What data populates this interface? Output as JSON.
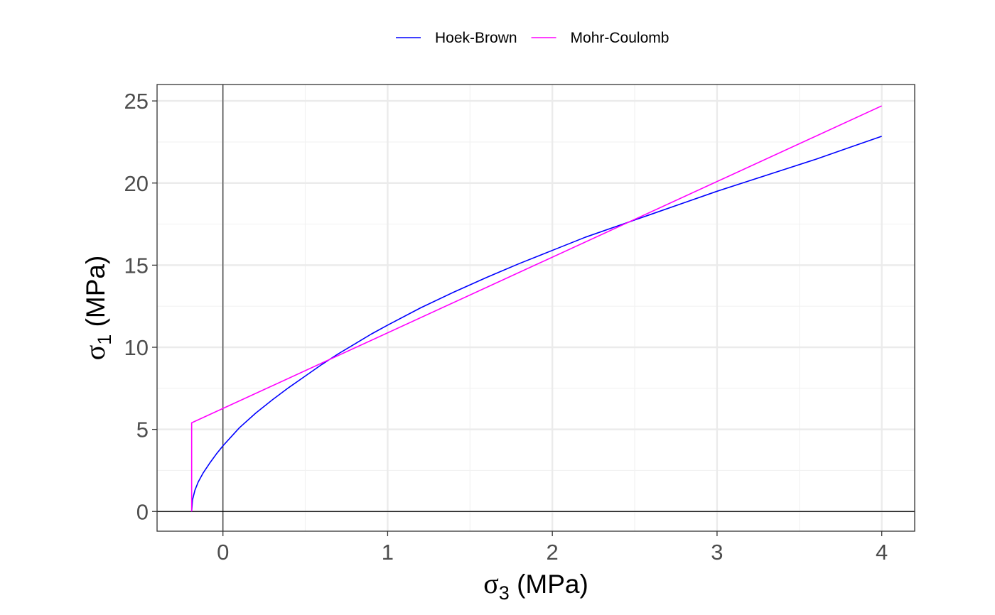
{
  "chart_data": {
    "type": "line",
    "title": "",
    "xlabel": {
      "symbol": "σ",
      "subscript": "3",
      "unit": " (MPa)"
    },
    "ylabel": {
      "symbol": "σ",
      "subscript": "1",
      "unit": " (MPa)"
    },
    "xlim": [
      -0.4,
      4.2
    ],
    "ylim": [
      -1.2,
      26
    ],
    "x_ticks": [
      0,
      1,
      2,
      3,
      4
    ],
    "x_tick_labels": [
      "0",
      "1",
      "2",
      "3",
      "4"
    ],
    "y_ticks": [
      0,
      5,
      10,
      15,
      20,
      25
    ],
    "y_tick_labels": [
      "0",
      "5",
      "10",
      "15",
      "20",
      "25"
    ],
    "grid": true,
    "legend_position": "top",
    "reference_lines": {
      "x": 0,
      "y": 0
    },
    "series": [
      {
        "name": "Hoek-Brown",
        "color": "#0000ff",
        "x": [
          -0.19,
          -0.185,
          -0.17,
          -0.15,
          -0.12,
          -0.08,
          -0.04,
          0,
          0.05,
          0.1,
          0.2,
          0.3,
          0.4,
          0.5,
          0.6,
          0.7,
          0.8,
          0.9,
          1.0,
          1.2,
          1.4,
          1.6,
          1.8,
          2.0,
          2.2,
          2.4,
          2.6,
          2.8,
          3.0,
          3.2,
          3.4,
          3.6,
          3.8,
          4.0
        ],
        "y": [
          0.0,
          0.7,
          1.3,
          1.8,
          2.35,
          2.95,
          3.5,
          4.0,
          4.55,
          5.1,
          6.0,
          6.8,
          7.55,
          8.25,
          8.95,
          9.6,
          10.2,
          10.8,
          11.35,
          12.4,
          13.35,
          14.25,
          15.1,
          15.9,
          16.7,
          17.4,
          18.1,
          18.8,
          19.5,
          20.15,
          20.8,
          21.45,
          22.15,
          22.85
        ]
      },
      {
        "name": "Mohr-Coulomb",
        "color": "#ff00ff",
        "x": [
          -0.19,
          -0.19,
          4.0
        ],
        "y": [
          0.0,
          5.4,
          24.7
        ]
      }
    ]
  }
}
